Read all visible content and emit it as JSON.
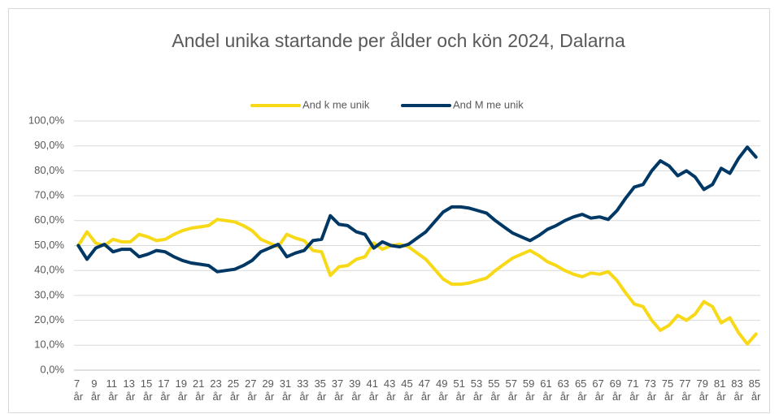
{
  "chart_data": {
    "type": "line",
    "title": "Andel unika startande per ålder och kön 2024, Dalarna",
    "categories": [
      "7 år",
      null,
      "9 år",
      null,
      "11 år",
      null,
      "13 år",
      null,
      "15 år",
      null,
      "17 år",
      null,
      "19 år",
      null,
      "21 år",
      null,
      "23 år",
      null,
      "25 år",
      null,
      "27 år",
      null,
      "29 år",
      null,
      "31 år",
      null,
      "33 år",
      null,
      "35 år",
      null,
      "37 år",
      null,
      "39 år",
      null,
      "41 år",
      null,
      "43 år",
      null,
      "45 år",
      null,
      "47 år",
      null,
      "49 år",
      null,
      "51 år",
      null,
      "53 år",
      null,
      "55 år",
      null,
      "57 år",
      null,
      "59 år",
      null,
      "61 år",
      null,
      "63 år",
      null,
      "65 år",
      null,
      "67 år",
      null,
      "69 år",
      null,
      "71 år",
      null,
      "73 år",
      null,
      "75 år",
      null,
      "77 år",
      null,
      "79 år",
      null,
      "81 år",
      null,
      "83 år",
      null,
      "85 år"
    ],
    "series": [
      {
        "name": "And k me unik",
        "color": "#f7d917",
        "values": [
          50,
          55.5,
          51,
          50,
          52.5,
          51.5,
          51.5,
          54.5,
          53.5,
          52,
          52.5,
          54.5,
          56,
          57,
          57.5,
          58,
          60.5,
          60,
          59.5,
          58,
          56,
          52.5,
          51,
          49.5,
          54.5,
          53,
          52,
          48,
          47.5,
          38,
          41.5,
          42,
          44.5,
          45.5,
          51,
          48.5,
          50,
          50.5,
          49.5,
          47,
          44.5,
          40.5,
          36.5,
          34.5,
          34.5,
          35,
          36,
          37,
          40,
          42.5,
          45,
          46.5,
          48,
          46,
          43.5,
          42,
          40,
          38.5,
          37.5,
          39,
          38.5,
          39.5,
          36,
          31,
          26.5,
          25.5,
          20,
          16,
          18,
          22,
          20,
          22.5,
          27.5,
          25.5,
          19,
          21,
          15,
          10.5,
          14.5
        ]
      },
      {
        "name": "And M me unik",
        "color": "#003865",
        "values": [
          50,
          44.5,
          49,
          50.5,
          47.5,
          48.5,
          48.5,
          45.5,
          46.5,
          48,
          47.5,
          45.5,
          44,
          43,
          42.5,
          42,
          39.5,
          40,
          40.5,
          42,
          44,
          47.5,
          49,
          50.5,
          45.5,
          47,
          48,
          52,
          52.5,
          62,
          58.5,
          58,
          55.5,
          54.5,
          49,
          51.5,
          50,
          49.5,
          50.5,
          53,
          55.5,
          59.5,
          63.5,
          65.5,
          65.5,
          65,
          64,
          63,
          60,
          57.5,
          55,
          53.5,
          52,
          54,
          56.5,
          58,
          60,
          61.5,
          62.5,
          61,
          61.5,
          60.5,
          64,
          69,
          73.5,
          74.5,
          80,
          84,
          82,
          78,
          80,
          77.5,
          72.5,
          74.5,
          81,
          79,
          85,
          89.5,
          85.5
        ]
      }
    ],
    "ylim": [
      0,
      100
    ],
    "yticks": [
      {
        "value": 0,
        "label": "0,0%"
      },
      {
        "value": 10,
        "label": "10,0%"
      },
      {
        "value": 20,
        "label": "20,0%"
      },
      {
        "value": 30,
        "label": "30,0%"
      },
      {
        "value": 40,
        "label": "40,0%"
      },
      {
        "value": 50,
        "label": "50,0%"
      },
      {
        "value": 60,
        "label": "60,0%"
      },
      {
        "value": 70,
        "label": "70,0%"
      },
      {
        "value": 80,
        "label": "80,0%"
      },
      {
        "value": 90,
        "label": "90,0%"
      },
      {
        "value": 100,
        "label": "100,0%"
      }
    ],
    "grid": true,
    "legend": "top"
  }
}
